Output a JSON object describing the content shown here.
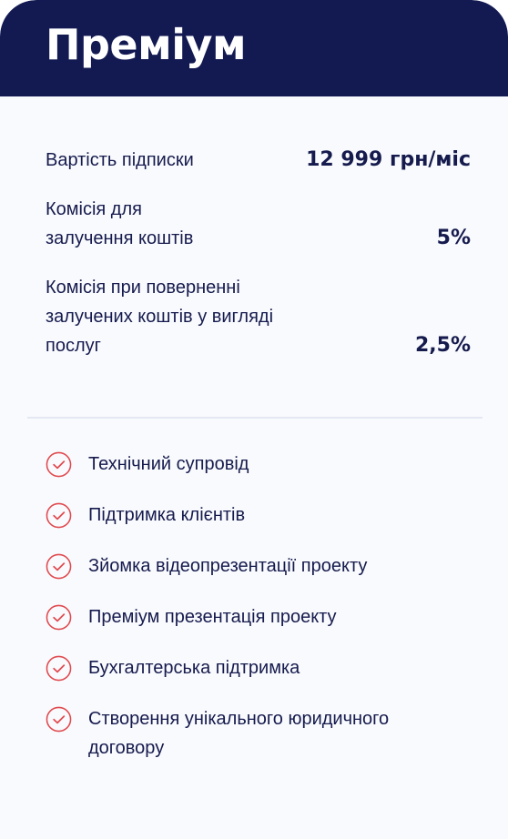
{
  "plan": {
    "title": "Преміум"
  },
  "pricing": [
    {
      "label": "Вартість підписки",
      "value": "12 999 грн/міс"
    },
    {
      "label": "Комісія для залучення коштів",
      "value": "5%"
    },
    {
      "label": "Комісія при поверненні залучених коштів у вигляді послуг",
      "value": "2,5%"
    }
  ],
  "features": [
    {
      "text": "Технічний супровід",
      "icon": "check-circle-icon"
    },
    {
      "text": "Підтримка клієнтів",
      "icon": "check-circle-icon"
    },
    {
      "text": "Зйомка відеопрезентації проекту",
      "icon": "check-circle-icon"
    },
    {
      "text": "Преміум презентація проекту",
      "icon": "check-circle-icon"
    },
    {
      "text": "Бухгалтерська підтримка",
      "icon": "check-circle-icon"
    },
    {
      "text": "Створення унікального юридичного договору",
      "icon": "check-circle-icon"
    }
  ],
  "colors": {
    "header_bg": "#131a52",
    "text": "#161b4e",
    "accent": "#e04a4f",
    "card_bg": "#f9fafd"
  }
}
